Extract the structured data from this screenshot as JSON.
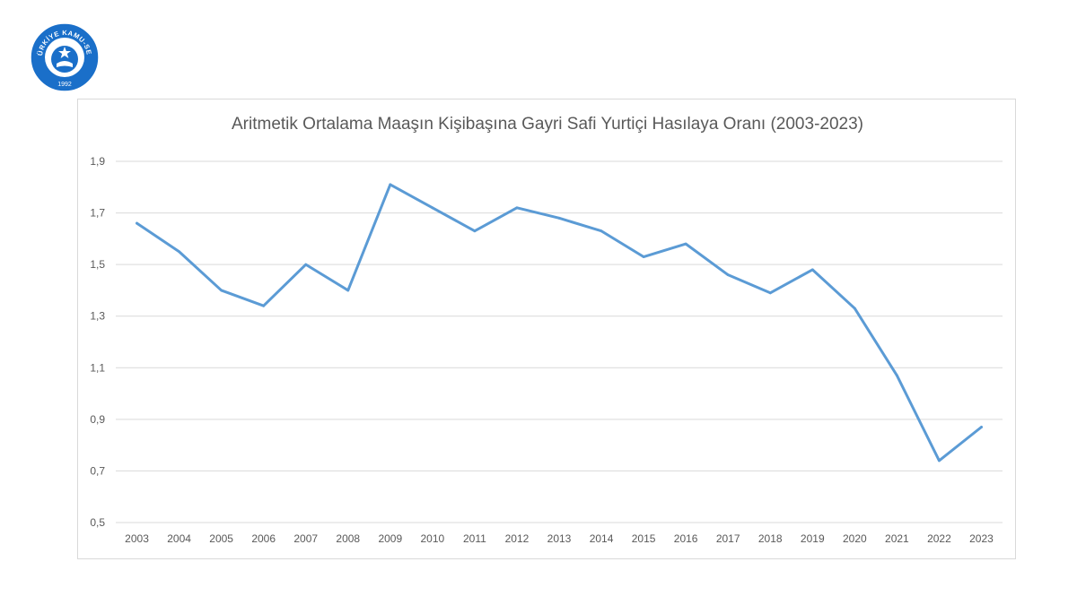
{
  "logo": {
    "text": "TÜRKİYE KAMU-SEN",
    "year": "1992",
    "colors": {
      "ring": "#1a6fc9",
      "inner": "#ffffff",
      "accent": "#1a6fc9"
    }
  },
  "chart_data": {
    "type": "line",
    "title": "Aritmetik Ortalama Maaşın Kişibaşına Gayri Safi Yurtiçi Hasılaya Oranı (2003-2023)",
    "xlabel": "",
    "ylabel": "",
    "categories": [
      "2003",
      "2004",
      "2005",
      "2006",
      "2007",
      "2008",
      "2009",
      "2010",
      "2011",
      "2012",
      "2013",
      "2014",
      "2015",
      "2016",
      "2017",
      "2018",
      "2019",
      "2020",
      "2021",
      "2022",
      "2023"
    ],
    "series": [
      {
        "values": [
          1.66,
          1.55,
          1.4,
          1.34,
          1.5,
          1.4,
          1.81,
          1.72,
          1.63,
          1.72,
          1.68,
          1.63,
          1.53,
          1.58,
          1.46,
          1.39,
          1.48,
          1.33,
          1.07,
          0.74,
          0.87
        ],
        "color": "#5b9bd5"
      }
    ],
    "ylim": [
      0.5,
      1.9
    ],
    "yticks": [
      "0,5",
      "0,7",
      "0,9",
      "1,1",
      "1,3",
      "1,5",
      "1,7",
      "1,9"
    ],
    "yticks_values": [
      0.5,
      0.7,
      0.9,
      1.1,
      1.3,
      1.5,
      1.7,
      1.9
    ],
    "grid": true,
    "legend": "none"
  }
}
